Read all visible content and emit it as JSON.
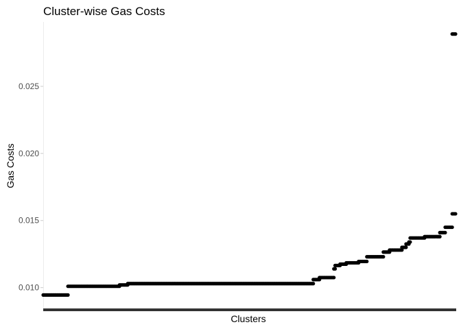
{
  "chart_data": {
    "type": "scatter",
    "title": "Cluster-wise Gas Costs",
    "xlabel": "Clusters",
    "ylabel": "Gas Costs",
    "x_ticks": [],
    "y_ticks": [
      0.01,
      0.015,
      0.02,
      0.025
    ],
    "y_tick_labels": [
      "0.010",
      "0.015",
      "0.020",
      "0.025"
    ],
    "ylim": [
      0.0085,
      0.0298
    ],
    "xlim": [
      0,
      1
    ],
    "grid": false,
    "legend": "none",
    "marker_color": "#000000",
    "steps": [
      {
        "x0": 0.0,
        "x1": 0.06,
        "y": 0.00945
      },
      {
        "x0": 0.06,
        "x1": 0.185,
        "y": 0.0101
      },
      {
        "x0": 0.185,
        "x1": 0.205,
        "y": 0.0102
      },
      {
        "x0": 0.205,
        "x1": 0.655,
        "y": 0.0103
      },
      {
        "x0": 0.655,
        "x1": 0.67,
        "y": 0.0106
      },
      {
        "x0": 0.67,
        "x1": 0.705,
        "y": 0.01075
      },
      {
        "x0": 0.705,
        "x1": 0.708,
        "y": 0.0114
      },
      {
        "x0": 0.708,
        "x1": 0.72,
        "y": 0.01165
      },
      {
        "x0": 0.72,
        "x1": 0.735,
        "y": 0.01175
      },
      {
        "x0": 0.735,
        "x1": 0.765,
        "y": 0.01185
      },
      {
        "x0": 0.765,
        "x1": 0.785,
        "y": 0.01195
      },
      {
        "x0": 0.785,
        "x1": 0.825,
        "y": 0.0123
      },
      {
        "x0": 0.825,
        "x1": 0.84,
        "y": 0.01265
      },
      {
        "x0": 0.84,
        "x1": 0.87,
        "y": 0.0128
      },
      {
        "x0": 0.87,
        "x1": 0.88,
        "y": 0.013
      },
      {
        "x0": 0.88,
        "x1": 0.887,
        "y": 0.01325
      },
      {
        "x0": 0.887,
        "x1": 0.89,
        "y": 0.0134
      },
      {
        "x0": 0.89,
        "x1": 0.925,
        "y": 0.0137
      },
      {
        "x0": 0.925,
        "x1": 0.962,
        "y": 0.0138
      },
      {
        "x0": 0.962,
        "x1": 0.975,
        "y": 0.0141
      },
      {
        "x0": 0.975,
        "x1": 0.992,
        "y": 0.0145
      },
      {
        "x0": 0.992,
        "x1": 1.0,
        "y": 0.0155
      },
      {
        "x0": 0.992,
        "x1": 1.0,
        "y": 0.0289
      }
    ]
  }
}
